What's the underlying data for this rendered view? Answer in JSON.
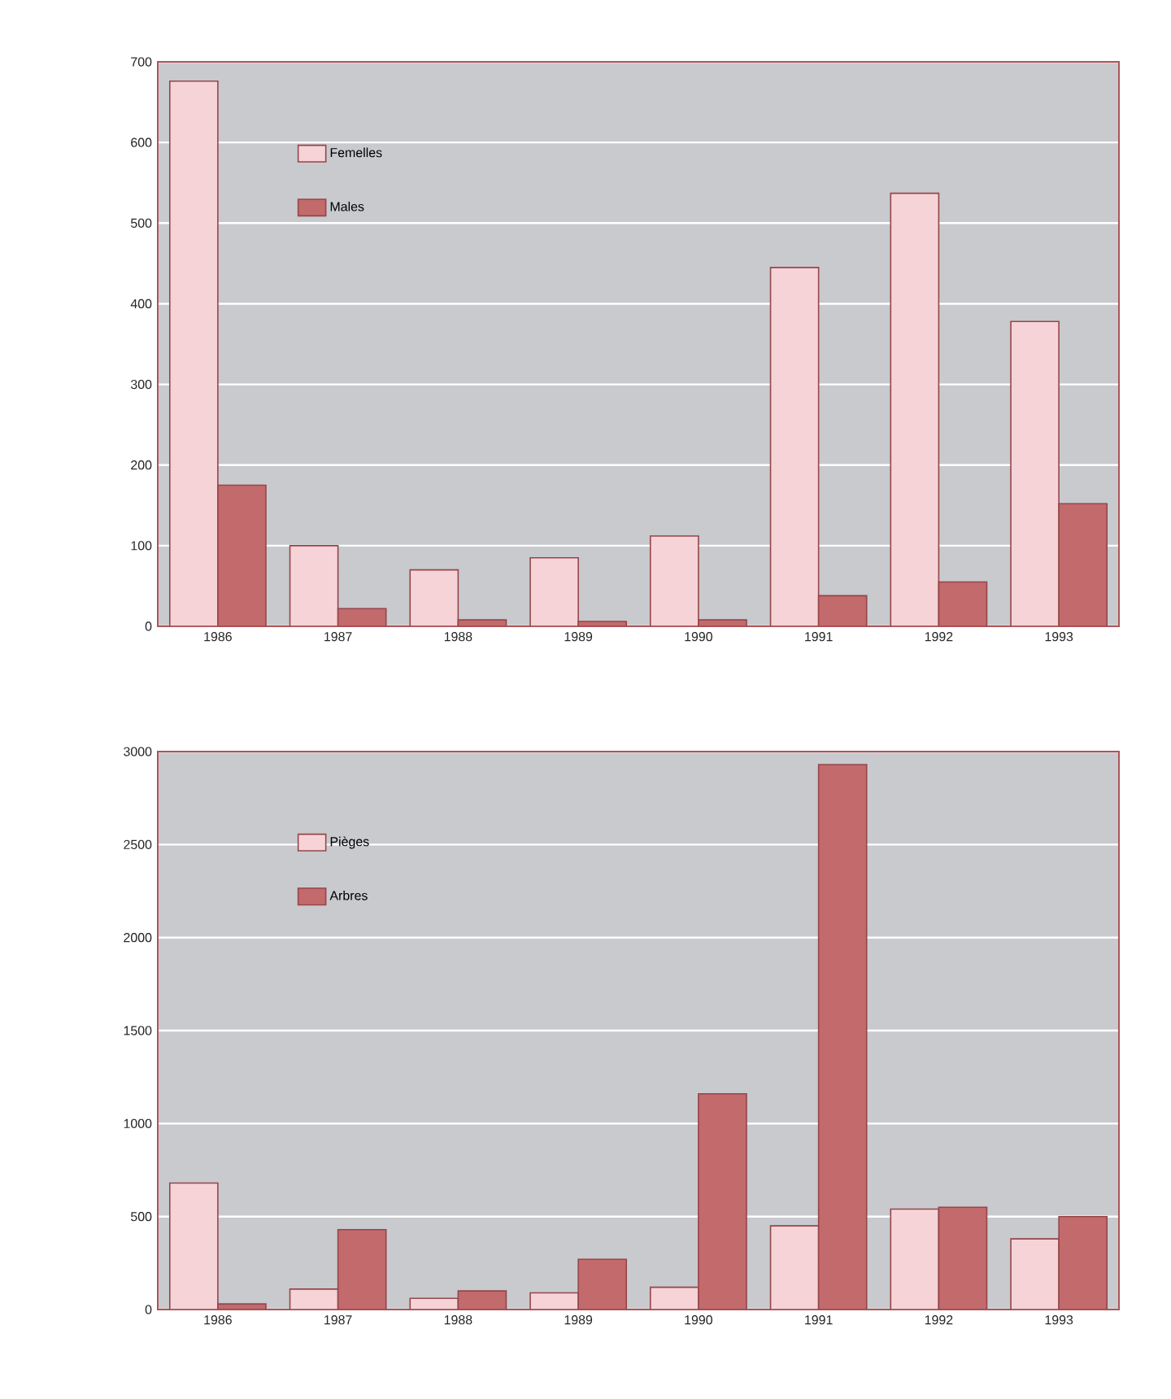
{
  "chart_data": [
    {
      "type": "bar",
      "categories": [
        "1986",
        "1987",
        "1988",
        "1989",
        "1990",
        "1991",
        "1992",
        "1993"
      ],
      "series": [
        {
          "name": "Femelles",
          "color": "#f6d3d6",
          "values": [
            676,
            100,
            70,
            85,
            112,
            445,
            537,
            378
          ]
        },
        {
          "name": "Males",
          "color": "#c26a6c",
          "values": [
            175,
            22,
            8,
            6,
            8,
            38,
            55,
            152
          ]
        }
      ],
      "ylim": [
        0,
        700
      ],
      "yticks": [
        0,
        100,
        200,
        300,
        400,
        500,
        600,
        700
      ],
      "grid": "y",
      "legend": "top left"
    },
    {
      "type": "bar",
      "categories": [
        "1986",
        "1987",
        "1988",
        "1989",
        "1990",
        "1991",
        "1992",
        "1993"
      ],
      "series": [
        {
          "name": "Pièges",
          "color": "#f6d3d6",
          "values": [
            680,
            110,
            60,
            90,
            120,
            450,
            540,
            380
          ]
        },
        {
          "name": "Arbres",
          "color": "#c26a6c",
          "values": [
            30,
            430,
            100,
            270,
            1160,
            2930,
            550,
            500
          ]
        }
      ],
      "ylim": [
        0,
        3000
      ],
      "yticks": [
        0,
        500,
        1000,
        1500,
        2000,
        2500,
        3000
      ],
      "grid": "y",
      "legend": "top left"
    }
  ]
}
